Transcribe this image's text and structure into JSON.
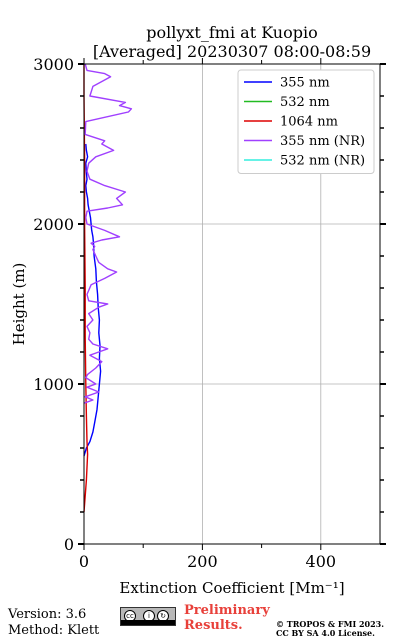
{
  "chart_data": {
    "type": "line",
    "title_line1": "pollyxt_fmi at Kuopio",
    "title_line2": "[Averaged] 20230307 08:00-08:59",
    "xlabel": "Extinction Coefficient [Mm⁻¹]",
    "ylabel": "Height (m)",
    "xlim": [
      0,
      500
    ],
    "ylim": [
      0,
      3000
    ],
    "xticks": [
      "0",
      "200",
      "400"
    ],
    "xtick_values": [
      0,
      200,
      400
    ],
    "yticks": [
      "0",
      "1000",
      "2000",
      "3000"
    ],
    "ytick_values": [
      0,
      1000,
      2000,
      3000
    ],
    "grid": true,
    "legend_position": "top-right",
    "series": [
      {
        "name": "355 nm",
        "color": "#0000ff",
        "x": [
          0,
          4,
          10,
          15,
          18,
          22,
          24,
          26,
          28,
          26,
          27,
          25,
          26,
          24,
          23,
          21,
          20,
          17,
          16,
          15,
          13,
          12,
          11,
          9,
          7,
          6,
          4,
          3,
          5,
          4,
          3,
          6,
          4,
          3
        ],
        "y": [
          550,
          600,
          640,
          700,
          760,
          840,
          920,
          1000,
          1080,
          1160,
          1240,
          1320,
          1400,
          1480,
          1560,
          1640,
          1720,
          1800,
          1880,
          1920,
          1960,
          2000,
          2040,
          2080,
          2120,
          2160,
          2200,
          2240,
          2280,
          2320,
          2380,
          2420,
          2460,
          2500
        ]
      },
      {
        "name": "532 nm",
        "color": "#22bb22",
        "x": [],
        "y": []
      },
      {
        "name": "1064 nm",
        "color": "#dd0000",
        "x": [
          0,
          2,
          4,
          5,
          6,
          5,
          4,
          3,
          2,
          2,
          1,
          1,
          0,
          0
        ],
        "y": [
          200,
          300,
          400,
          480,
          560,
          640,
          800,
          1000,
          1300,
          1600,
          2000,
          2400,
          2800,
          3000
        ]
      },
      {
        "name": "355 nm (NR)",
        "color": "#a040ff",
        "x": [
          0,
          15,
          2,
          25,
          5,
          20,
          3,
          6,
          20,
          30,
          10,
          25,
          40,
          15,
          8,
          10,
          5,
          15,
          8,
          25,
          40,
          8,
          5,
          12,
          35,
          55,
          40,
          25,
          20,
          15,
          18,
          12,
          30,
          60,
          35,
          5,
          3,
          5,
          40,
          65,
          55,
          70,
          35,
          10,
          5,
          8,
          20,
          50,
          30,
          35,
          2,
          3,
          75,
          80,
          60,
          70,
          10,
          15,
          45,
          35,
          5,
          2
        ],
        "y": [
          880,
          900,
          920,
          950,
          980,
          1000,
          1040,
          1060,
          1100,
          1140,
          1180,
          1200,
          1220,
          1250,
          1280,
          1320,
          1360,
          1400,
          1440,
          1480,
          1500,
          1520,
          1560,
          1620,
          1660,
          1700,
          1720,
          1760,
          1800,
          1840,
          1860,
          1880,
          1900,
          1920,
          1960,
          2000,
          2040,
          2080,
          2100,
          2120,
          2160,
          2200,
          2240,
          2280,
          2330,
          2380,
          2420,
          2460,
          2500,
          2520,
          2560,
          2640,
          2700,
          2720,
          2740,
          2760,
          2800,
          2860,
          2920,
          2940,
          2960,
          3000
        ]
      },
      {
        "name": "532 nm (NR)",
        "color": "#33eedd",
        "x": [],
        "y": []
      }
    ]
  },
  "footer": {
    "version": "Version: 3.6",
    "method": "Method: Klett",
    "preliminary_line1": "Preliminary",
    "preliminary_line2": "Results.",
    "copyright_line1": "© TROPOS & FMI 2023.",
    "copyright_line2": "CC BY SA 4.0 License."
  }
}
